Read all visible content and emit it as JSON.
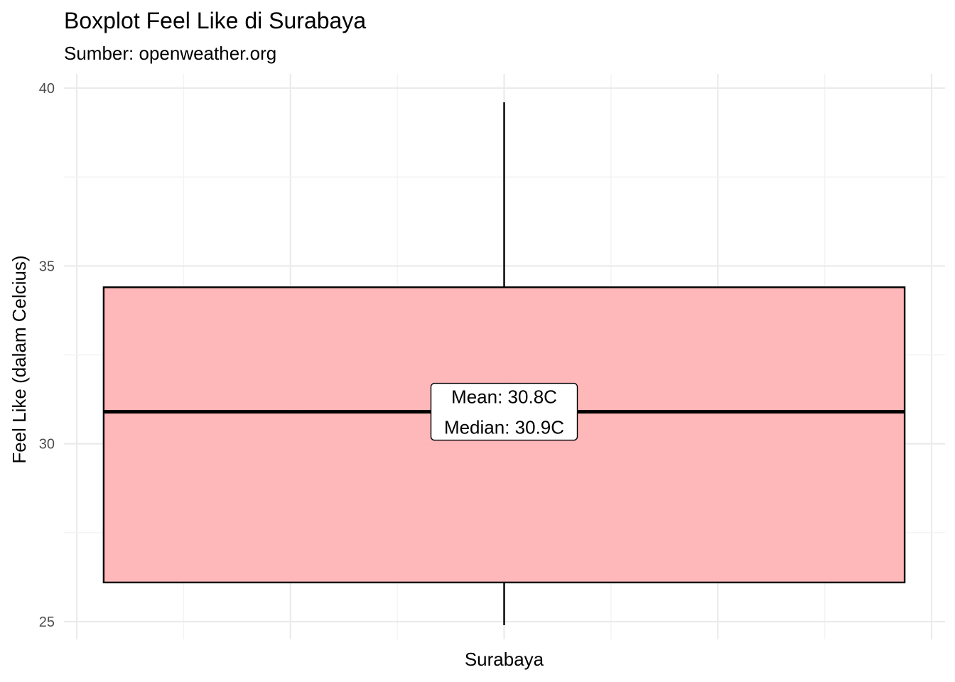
{
  "chart_data": {
    "type": "box",
    "title": "Boxplot Feel Like di Surabaya",
    "subtitle": "Sumber: openweather.org",
    "xlabel": "",
    "ylabel": "Feel Like (dalam Celcius)",
    "ylim": [
      24.5,
      40.4
    ],
    "yticks": [
      25,
      30,
      35,
      40
    ],
    "categories": [
      "Surabaya"
    ],
    "boxes": [
      {
        "category": "Surabaya",
        "min": 24.9,
        "q1": 26.1,
        "median": 30.9,
        "q3": 34.4,
        "max": 39.6,
        "mean": 30.8
      }
    ],
    "annotation": {
      "lines": [
        "Mean: 30.8C",
        "Median: 30.9C"
      ]
    },
    "colors": {
      "box_fill": "#ffb3b5",
      "box_stroke": "#000000",
      "grid_major": "#ebebeb",
      "grid_minor": "#f3f3f3"
    },
    "grid": true,
    "legend": "none"
  }
}
